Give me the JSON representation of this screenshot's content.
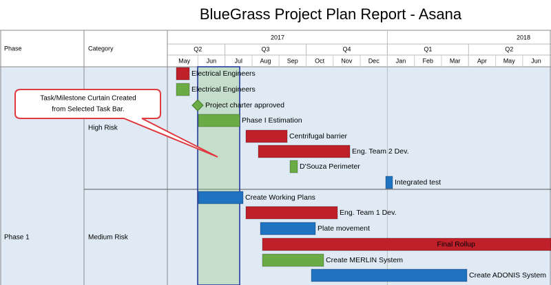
{
  "header": {
    "title": "BlueGrass Project Plan Report - Asana"
  },
  "columns": [
    "Phase",
    "Category"
  ],
  "timeline": {
    "years": [
      "2017",
      "2018"
    ],
    "quarters": [
      "Q2",
      "Q3",
      "Q4",
      "Q1",
      "Q2"
    ],
    "months": [
      "May",
      "Jun",
      "Jul",
      "Aug",
      "Sep",
      "Oct",
      "Nov",
      "Dec",
      "Jan",
      "Feb",
      "Mar",
      "Apr",
      "May",
      "Jun"
    ]
  },
  "phase": "Phase 1",
  "categories": [
    "High Risk",
    "Medium Risk"
  ],
  "tasks": [
    {
      "label": "Electrical Engineers",
      "color": "#c0202a"
    },
    {
      "label": "Electrical Engineers",
      "color": "#6aab45"
    },
    {
      "label": "Project charter approved",
      "color": "#6aab45"
    },
    {
      "label": "Phase I Estimation",
      "color": "#6aab45"
    },
    {
      "label": "Centrifugal barrier",
      "color": "#c0202a"
    },
    {
      "label": "Eng. Team 2 Dev.",
      "color": "#c0202a"
    },
    {
      "label": "D'Souza Perimeter",
      "color": "#6aab45"
    },
    {
      "label": "Integrated test",
      "color": "#1f73c0"
    },
    {
      "label": "Create Working Plans",
      "color": "#1f73c0"
    },
    {
      "label": "Eng. Team 1 Dev.",
      "color": "#c0202a"
    },
    {
      "label": "Plate movement",
      "color": "#1f73c0"
    },
    {
      "label": "Final Rollup",
      "color": "#c0202a"
    },
    {
      "label": "Create MERLIN System",
      "color": "#6aab45"
    },
    {
      "label": "Create ADONIS System",
      "color": "#1f73c0"
    }
  ],
  "callout": [
    "Task/Milestone Curtain Created",
    "from Selected Task Bar."
  ]
}
